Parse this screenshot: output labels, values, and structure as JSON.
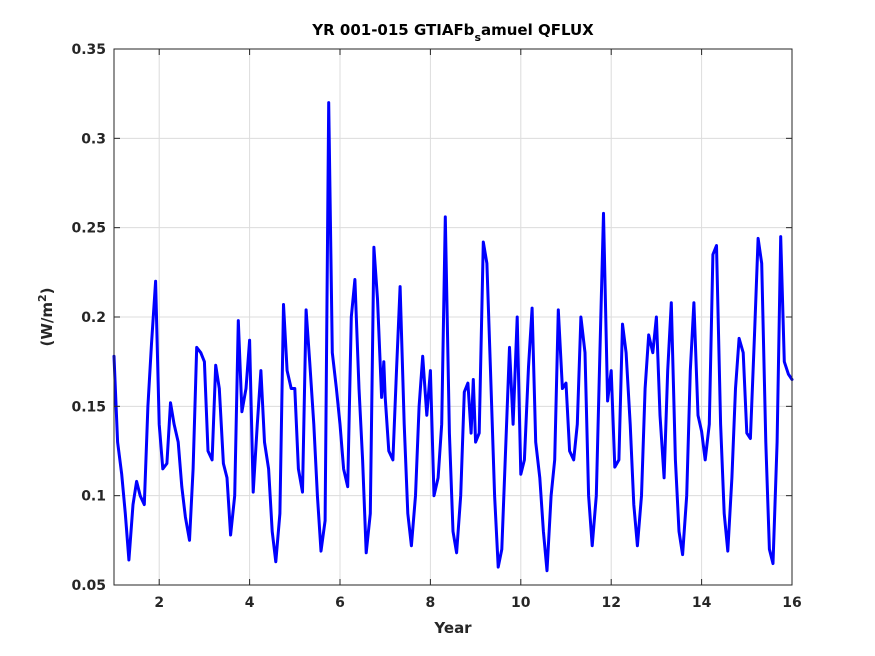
{
  "chart_data": {
    "type": "line",
    "title_parts": {
      "main": "YR 001-015 GTIAFb",
      "sub": "s",
      "rest": "amuel QFLUX"
    },
    "xlabel": "Year",
    "ylabel_parts": {
      "main": "(W/m",
      "sup": "2",
      "rest": ")"
    },
    "xlim": [
      1,
      16
    ],
    "ylim": [
      0.05,
      0.35
    ],
    "xticks": [
      2,
      4,
      6,
      8,
      10,
      12,
      14,
      16
    ],
    "yticks": [
      0.05,
      0.1,
      0.15,
      0.2,
      0.25,
      0.3,
      0.35
    ],
    "grid": true,
    "line_color": "#0000ff",
    "series": [
      {
        "points": [
          [
            1.0,
            0.178
          ],
          [
            1.08,
            0.13
          ],
          [
            1.17,
            0.112
          ],
          [
            1.25,
            0.09
          ],
          [
            1.33,
            0.064
          ],
          [
            1.42,
            0.095
          ],
          [
            1.5,
            0.108
          ],
          [
            1.58,
            0.1
          ],
          [
            1.67,
            0.095
          ],
          [
            1.75,
            0.15
          ],
          [
            1.83,
            0.185
          ],
          [
            1.92,
            0.22
          ],
          [
            2.0,
            0.14
          ],
          [
            2.08,
            0.115
          ],
          [
            2.17,
            0.118
          ],
          [
            2.25,
            0.152
          ],
          [
            2.33,
            0.14
          ],
          [
            2.42,
            0.13
          ],
          [
            2.5,
            0.105
          ],
          [
            2.58,
            0.088
          ],
          [
            2.67,
            0.075
          ],
          [
            2.75,
            0.115
          ],
          [
            2.83,
            0.183
          ],
          [
            2.92,
            0.18
          ],
          [
            3.0,
            0.175
          ],
          [
            3.08,
            0.125
          ],
          [
            3.17,
            0.12
          ],
          [
            3.25,
            0.173
          ],
          [
            3.33,
            0.16
          ],
          [
            3.42,
            0.118
          ],
          [
            3.5,
            0.11
          ],
          [
            3.58,
            0.078
          ],
          [
            3.67,
            0.1
          ],
          [
            3.75,
            0.198
          ],
          [
            3.83,
            0.147
          ],
          [
            3.92,
            0.16
          ],
          [
            4.0,
            0.187
          ],
          [
            4.08,
            0.102
          ],
          [
            4.17,
            0.14
          ],
          [
            4.25,
            0.17
          ],
          [
            4.33,
            0.13
          ],
          [
            4.42,
            0.115
          ],
          [
            4.5,
            0.08
          ],
          [
            4.58,
            0.063
          ],
          [
            4.67,
            0.09
          ],
          [
            4.75,
            0.207
          ],
          [
            4.83,
            0.17
          ],
          [
            4.92,
            0.16
          ],
          [
            5.0,
            0.16
          ],
          [
            5.08,
            0.115
          ],
          [
            5.17,
            0.102
          ],
          [
            5.25,
            0.204
          ],
          [
            5.33,
            0.175
          ],
          [
            5.42,
            0.14
          ],
          [
            5.5,
            0.1
          ],
          [
            5.58,
            0.069
          ],
          [
            5.67,
            0.086
          ],
          [
            5.75,
            0.32
          ],
          [
            5.83,
            0.18
          ],
          [
            5.92,
            0.16
          ],
          [
            6.0,
            0.14
          ],
          [
            6.08,
            0.115
          ],
          [
            6.17,
            0.105
          ],
          [
            6.25,
            0.2
          ],
          [
            6.33,
            0.221
          ],
          [
            6.42,
            0.16
          ],
          [
            6.5,
            0.12
          ],
          [
            6.58,
            0.068
          ],
          [
            6.67,
            0.09
          ],
          [
            6.75,
            0.239
          ],
          [
            6.83,
            0.21
          ],
          [
            6.92,
            0.155
          ],
          [
            6.97,
            0.175
          ],
          [
            7.0,
            0.155
          ],
          [
            7.08,
            0.125
          ],
          [
            7.17,
            0.12
          ],
          [
            7.25,
            0.17
          ],
          [
            7.33,
            0.217
          ],
          [
            7.42,
            0.14
          ],
          [
            7.5,
            0.09
          ],
          [
            7.58,
            0.072
          ],
          [
            7.67,
            0.1
          ],
          [
            7.75,
            0.15
          ],
          [
            7.83,
            0.178
          ],
          [
            7.92,
            0.145
          ],
          [
            8.0,
            0.17
          ],
          [
            8.08,
            0.1
          ],
          [
            8.17,
            0.11
          ],
          [
            8.25,
            0.14
          ],
          [
            8.33,
            0.256
          ],
          [
            8.42,
            0.135
          ],
          [
            8.5,
            0.08
          ],
          [
            8.58,
            0.068
          ],
          [
            8.67,
            0.1
          ],
          [
            8.75,
            0.158
          ],
          [
            8.83,
            0.163
          ],
          [
            8.9,
            0.135
          ],
          [
            8.95,
            0.165
          ],
          [
            9.0,
            0.13
          ],
          [
            9.08,
            0.135
          ],
          [
            9.17,
            0.242
          ],
          [
            9.25,
            0.23
          ],
          [
            9.33,
            0.17
          ],
          [
            9.42,
            0.1
          ],
          [
            9.5,
            0.06
          ],
          [
            9.58,
            0.07
          ],
          [
            9.67,
            0.13
          ],
          [
            9.75,
            0.183
          ],
          [
            9.83,
            0.14
          ],
          [
            9.92,
            0.2
          ],
          [
            10.0,
            0.112
          ],
          [
            10.08,
            0.12
          ],
          [
            10.17,
            0.172
          ],
          [
            10.25,
            0.205
          ],
          [
            10.33,
            0.13
          ],
          [
            10.42,
            0.11
          ],
          [
            10.5,
            0.08
          ],
          [
            10.58,
            0.058
          ],
          [
            10.67,
            0.1
          ],
          [
            10.75,
            0.12
          ],
          [
            10.83,
            0.204
          ],
          [
            10.92,
            0.16
          ],
          [
            11.0,
            0.163
          ],
          [
            11.08,
            0.125
          ],
          [
            11.17,
            0.12
          ],
          [
            11.25,
            0.14
          ],
          [
            11.33,
            0.2
          ],
          [
            11.42,
            0.18
          ],
          [
            11.5,
            0.1
          ],
          [
            11.58,
            0.072
          ],
          [
            11.67,
            0.1
          ],
          [
            11.75,
            0.18
          ],
          [
            11.83,
            0.258
          ],
          [
            11.92,
            0.153
          ],
          [
            12.0,
            0.17
          ],
          [
            12.08,
            0.116
          ],
          [
            12.17,
            0.12
          ],
          [
            12.25,
            0.196
          ],
          [
            12.33,
            0.18
          ],
          [
            12.42,
            0.14
          ],
          [
            12.5,
            0.095
          ],
          [
            12.58,
            0.072
          ],
          [
            12.67,
            0.1
          ],
          [
            12.75,
            0.16
          ],
          [
            12.83,
            0.19
          ],
          [
            12.92,
            0.18
          ],
          [
            13.0,
            0.2
          ],
          [
            13.08,
            0.145
          ],
          [
            13.17,
            0.11
          ],
          [
            13.25,
            0.17
          ],
          [
            13.33,
            0.208
          ],
          [
            13.42,
            0.12
          ],
          [
            13.5,
            0.08
          ],
          [
            13.58,
            0.067
          ],
          [
            13.67,
            0.1
          ],
          [
            13.75,
            0.17
          ],
          [
            13.83,
            0.208
          ],
          [
            13.92,
            0.145
          ],
          [
            14.0,
            0.136
          ],
          [
            14.08,
            0.12
          ],
          [
            14.17,
            0.14
          ],
          [
            14.25,
            0.235
          ],
          [
            14.33,
            0.24
          ],
          [
            14.42,
            0.14
          ],
          [
            14.5,
            0.09
          ],
          [
            14.58,
            0.069
          ],
          [
            14.67,
            0.11
          ],
          [
            14.75,
            0.16
          ],
          [
            14.83,
            0.188
          ],
          [
            14.92,
            0.18
          ],
          [
            15.0,
            0.135
          ],
          [
            15.08,
            0.132
          ],
          [
            15.17,
            0.19
          ],
          [
            15.25,
            0.244
          ],
          [
            15.33,
            0.23
          ],
          [
            15.42,
            0.13
          ],
          [
            15.5,
            0.07
          ],
          [
            15.58,
            0.062
          ],
          [
            15.67,
            0.13
          ],
          [
            15.75,
            0.245
          ],
          [
            15.83,
            0.175
          ],
          [
            15.92,
            0.168
          ],
          [
            16.0,
            0.165
          ]
        ]
      }
    ]
  }
}
